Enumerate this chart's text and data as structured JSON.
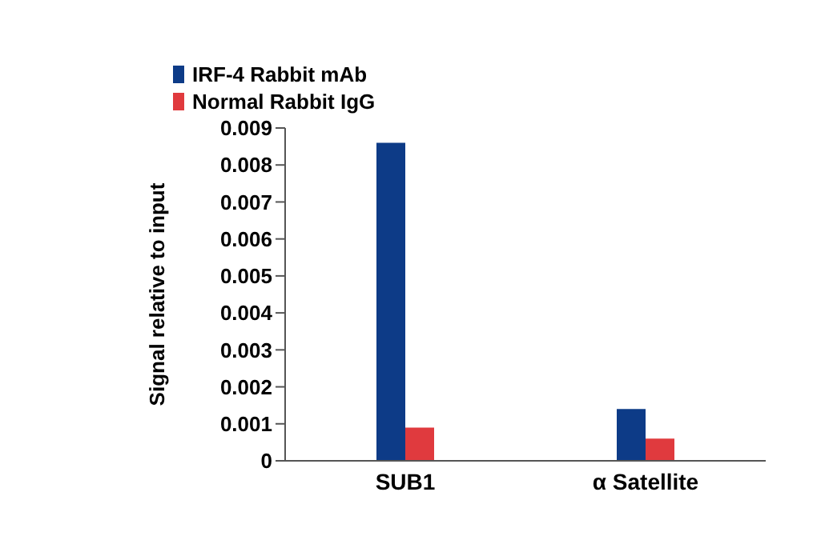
{
  "chart_data": {
    "type": "bar",
    "ylabel": "Signal relative to input",
    "categories": [
      "SUB1",
      "α Satellite"
    ],
    "series": [
      {
        "name": "IRF-4 Rabbit mAb",
        "color": "#0d3b87",
        "values": [
          0.0086,
          0.0014
        ]
      },
      {
        "name": "Normal Rabbit IgG",
        "color": "#e03a3e",
        "values": [
          0.0009,
          0.0006
        ]
      }
    ],
    "ylim": [
      0,
      0.009
    ],
    "yticks": [
      0,
      0.001,
      0.002,
      0.003,
      0.004,
      0.005,
      0.006,
      0.007,
      0.008,
      0.009
    ],
    "grid": false,
    "legend": "top"
  }
}
